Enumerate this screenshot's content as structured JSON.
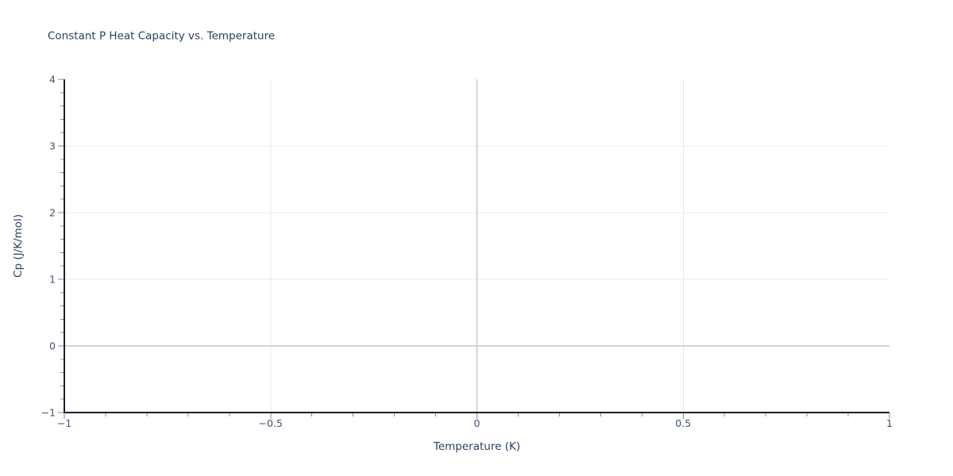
{
  "chart_data": {
    "type": "line",
    "title": "Constant P Heat Capacity vs. Temperature",
    "xlabel": "Temperature (K)",
    "ylabel": "Cp (J/K/mol)",
    "xlim": [
      -1,
      1
    ],
    "ylim": [
      -1,
      4
    ],
    "series": [],
    "grid": true,
    "legend": "none",
    "x_axis": {
      "major_ticks": [
        -1,
        -0.5,
        0,
        0.5,
        1
      ],
      "tick_labels": [
        "−1",
        "−0.5",
        "0",
        "0.5",
        "1"
      ],
      "minor_tick_step": 0.1,
      "gridline_values": [
        -0.5,
        0.5
      ],
      "zeroline_value": 0
    },
    "y_axis": {
      "major_ticks": [
        -1,
        0,
        1,
        2,
        3,
        4
      ],
      "tick_labels": [
        "−1",
        "0",
        "1",
        "2",
        "3",
        "4"
      ],
      "minor_tick_step": 0.2,
      "gridline_values": [
        1,
        2,
        3
      ],
      "zeroline_value": 0
    },
    "colors": {
      "title": "#2a3f5f",
      "axis_title": "#2a3f5f",
      "tick_label": "#42526e",
      "gridline": "#e8e8e8",
      "zeroline": "#d4d4d4",
      "axis_spine": "#1c2028",
      "tick_mark": "#858a92",
      "plot_background": "#ffffff",
      "series_line": "#2a3f5f"
    }
  }
}
